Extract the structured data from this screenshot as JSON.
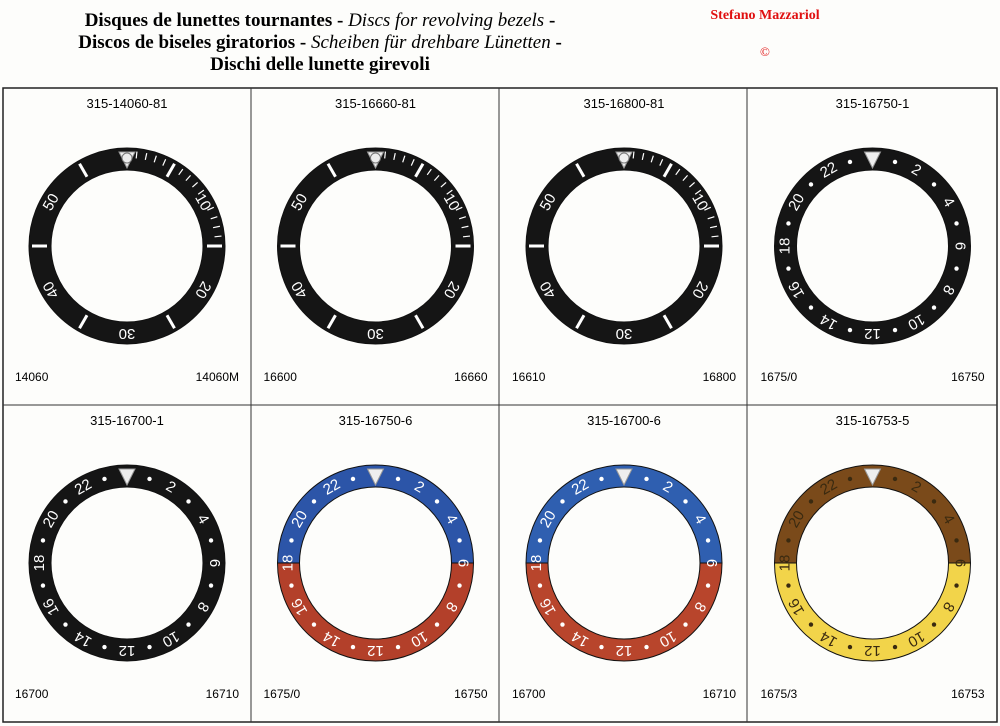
{
  "header": {
    "title_lines": [
      [
        {
          "text": "Disques de lunettes tournantes - ",
          "italic": false
        },
        {
          "text": "Discs for revolving bezels",
          "italic": true
        },
        {
          "text": " -",
          "italic": false
        }
      ],
      [
        {
          "text": "Discos de biseles giratorios - ",
          "italic": false
        },
        {
          "text": "Scheiben für drehbare Lünetten",
          "italic": true
        },
        {
          "text": " -",
          "italic": false
        }
      ],
      [
        {
          "text": "Dischi delle lunette girevoli",
          "italic": false
        }
      ]
    ],
    "author": "Stefano Mazzariol",
    "copyright": "©"
  },
  "cells": [
    {
      "part": "315-14060-81",
      "left": "14060",
      "right": "14060M",
      "numerals": [
        "10",
        "20",
        "30",
        "40",
        "50"
      ],
      "colors": [
        "#151515",
        "#151515"
      ],
      "text_color": "#ffffff"
    },
    {
      "part": "315-16660-81",
      "left": "16600",
      "right": "16660",
      "numerals": [
        "10",
        "20",
        "30",
        "40",
        "50"
      ],
      "colors": [
        "#151515",
        "#151515"
      ],
      "text_color": "#ffffff"
    },
    {
      "part": "315-16800-81",
      "left": "16610",
      "right": "16800",
      "numerals": [
        "10",
        "20",
        "30",
        "40",
        "50"
      ],
      "colors": [
        "#151515",
        "#151515"
      ],
      "text_color": "#ffffff"
    },
    {
      "part": "315-16750-1",
      "left": "1675/0",
      "right": "16750",
      "numerals": [
        "2",
        "4",
        "6",
        "8",
        "10",
        "12",
        "14",
        "16",
        "18",
        "20",
        "22"
      ],
      "colors": [
        "#151515",
        "#151515"
      ],
      "text_color": "#ffffff"
    },
    {
      "part": "315-16700-1",
      "left": "16700",
      "right": "16710",
      "numerals": [
        "2",
        "4",
        "6",
        "8",
        "10",
        "12",
        "14",
        "16",
        "18",
        "20",
        "22"
      ],
      "colors": [
        "#151515",
        "#151515"
      ],
      "text_color": "#ffffff"
    },
    {
      "part": "315-16750-6",
      "left": "1675/0",
      "right": "16750",
      "numerals": [
        "2",
        "4",
        "6",
        "8",
        "10",
        "12",
        "14",
        "16",
        "18",
        "20",
        "22"
      ],
      "colors": [
        "#2c55a8",
        "#b3402a"
      ],
      "text_color": "#ffffff"
    },
    {
      "part": "315-16700-6",
      "left": "16700",
      "right": "16710",
      "numerals": [
        "2",
        "4",
        "6",
        "8",
        "10",
        "12",
        "14",
        "16",
        "18",
        "20",
        "22"
      ],
      "colors": [
        "#2f5fb0",
        "#b8452c"
      ],
      "text_color": "#ffffff"
    },
    {
      "part": "315-16753-5",
      "left": "1675/3",
      "right": "16753",
      "numerals": [
        "2",
        "4",
        "6",
        "8",
        "10",
        "12",
        "14",
        "16",
        "18",
        "20",
        "22"
      ],
      "colors": [
        "#7a4a1a",
        "#f2d44a"
      ],
      "text_color": "#3a2a10"
    }
  ]
}
